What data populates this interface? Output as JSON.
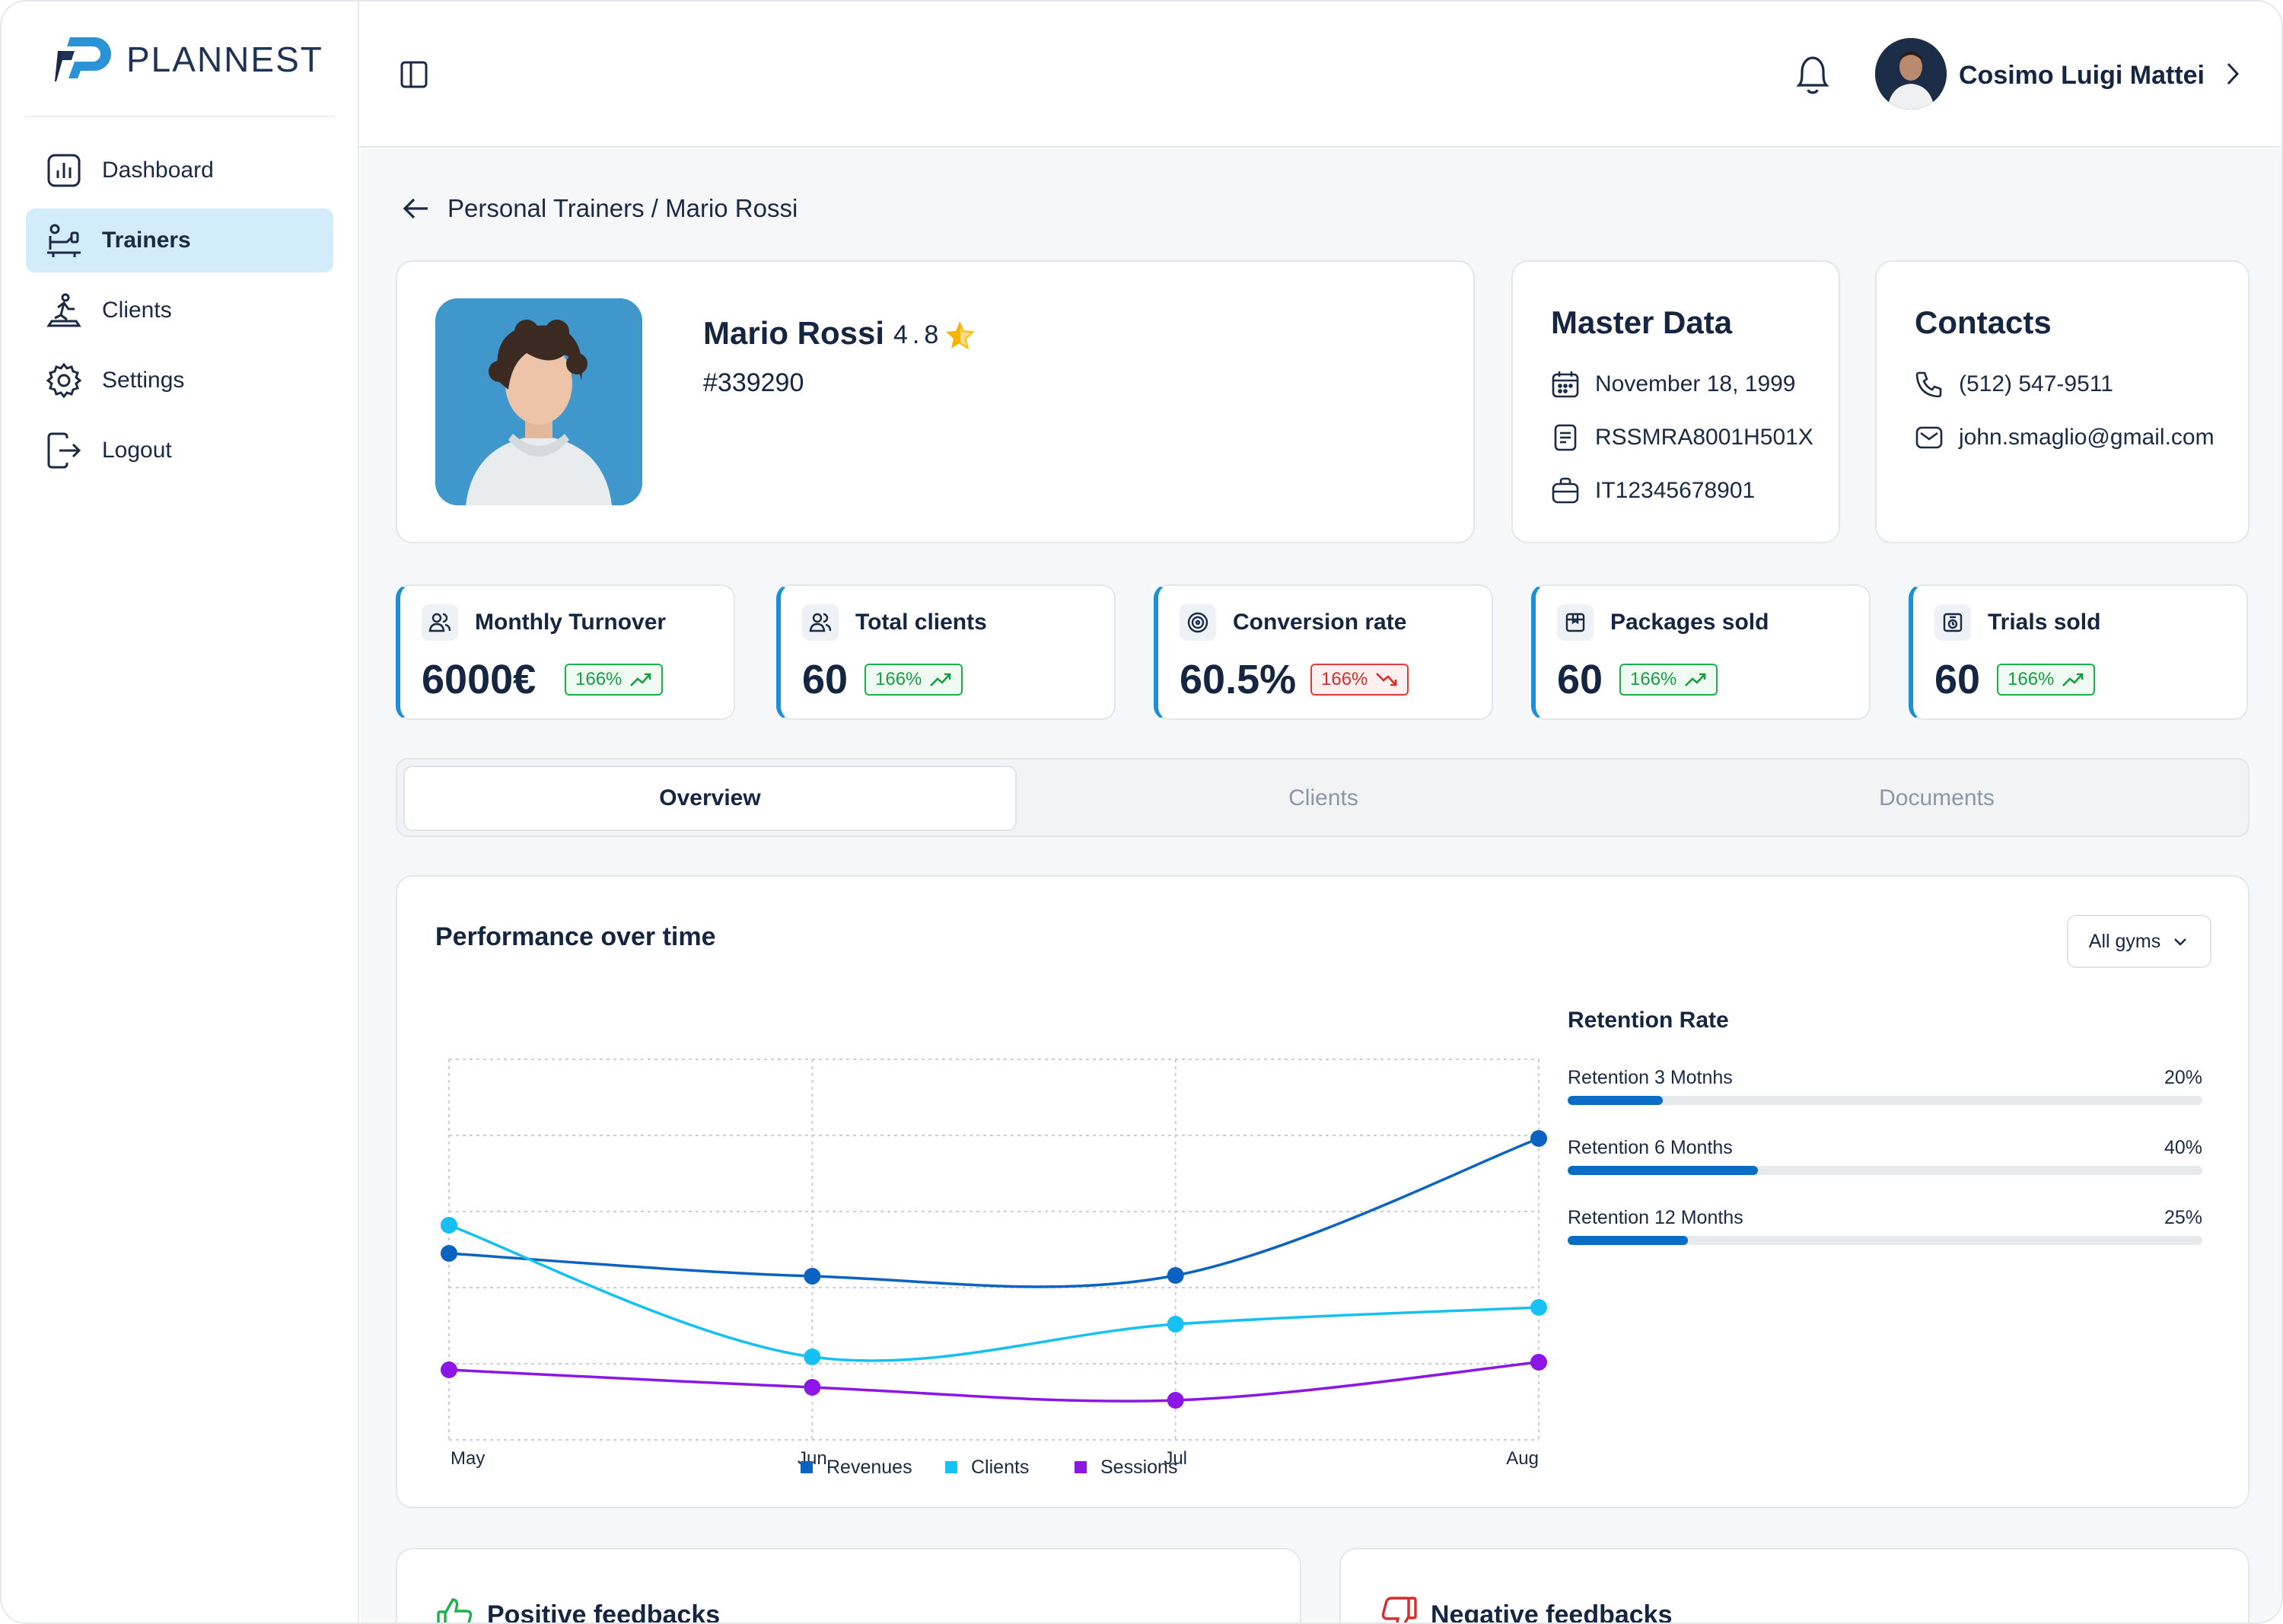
{
  "app": {
    "name": "PLANNEST"
  },
  "sidebar": {
    "items": [
      {
        "label": "Dashboard",
        "icon": "chart-icon"
      },
      {
        "label": "Trainers",
        "icon": "trainer-icon",
        "active": true
      },
      {
        "label": "Clients",
        "icon": "client-run-icon"
      },
      {
        "label": "Settings",
        "icon": "gear-icon"
      },
      {
        "label": "Logout",
        "icon": "logout-icon"
      }
    ]
  },
  "topbar": {
    "user_name": "Cosimo Luigi Mattei"
  },
  "breadcrumb": {
    "text": "Personal Trainers / Mario Rossi"
  },
  "profile": {
    "name": "Mario Rossi",
    "rating": "4.8",
    "id": "#339290"
  },
  "master_data": {
    "title": "Master Data",
    "birth_date": "November 18, 1999",
    "tax_code": "RSSMRA8001H501X",
    "vat": "IT12345678901"
  },
  "contacts": {
    "title": "Contacts",
    "phone": "(512) 547-9511",
    "email": "john.smaglio@gmail.com"
  },
  "stats": [
    {
      "label": "Monthly Turnover",
      "value": "6000€",
      "change": "166%",
      "trend": "up"
    },
    {
      "label": "Total clients",
      "value": "60",
      "change": "166%",
      "trend": "up"
    },
    {
      "label": "Conversion rate",
      "value": "60.5%",
      "change": "166%",
      "trend": "down"
    },
    {
      "label": "Packages sold",
      "value": "60",
      "change": "166%",
      "trend": "up"
    },
    {
      "label": "Trials sold",
      "value": "60",
      "change": "166%",
      "trend": "up"
    }
  ],
  "tabs": [
    {
      "label": "Overview",
      "active": true
    },
    {
      "label": "Clients"
    },
    {
      "label": "Documents"
    }
  ],
  "performance": {
    "title": "Performance over time",
    "filter": "All gyms"
  },
  "chart_data": {
    "type": "line",
    "x": [
      "May",
      "Jun",
      "Jul",
      "Aug"
    ],
    "ylim": [
      0,
      5
    ],
    "grid": true,
    "legend": "bottom",
    "series": [
      {
        "name": "Revenues",
        "color": "#0b63c1",
        "values": [
          2.45,
          2.15,
          2.16,
          3.96
        ]
      },
      {
        "name": "Clients",
        "color": "#16c0f2",
        "values": [
          2.82,
          1.09,
          1.52,
          1.74
        ]
      },
      {
        "name": "Sessions",
        "color": "#8b16e6",
        "values": [
          0.92,
          0.69,
          0.52,
          1.02
        ]
      }
    ]
  },
  "retention": {
    "title": "Retention Rate",
    "rows": [
      {
        "label": "Retention 3 Motnhs",
        "pct": "20%",
        "value": 0.15
      },
      {
        "label": "Retention 6 Months",
        "pct": "40%",
        "value": 0.3
      },
      {
        "label": "Retention 12 Months",
        "pct": "25%",
        "value": 0.19
      }
    ]
  },
  "feedback": {
    "positive": "Positive feedbacks",
    "negative": "Negative feedbacks"
  },
  "colors": {
    "accent": "#1d8fd6",
    "active_nav": "#d3ecfb",
    "up": "#1a9d42",
    "down": "#d62d2d"
  }
}
